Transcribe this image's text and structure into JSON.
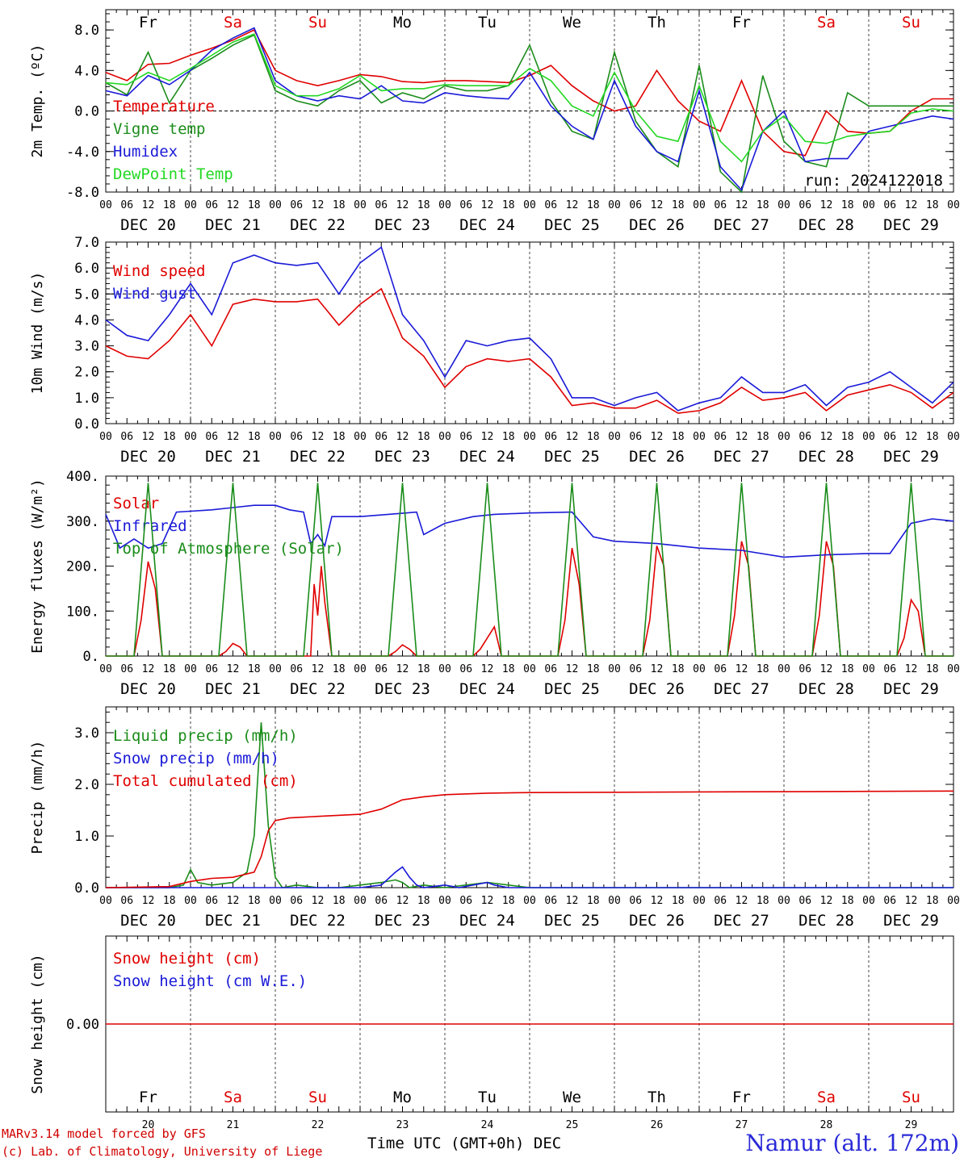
{
  "layout_common": {
    "days": [
      "DEC 20",
      "DEC 21",
      "DEC 22",
      "DEC 23",
      "DEC 24",
      "DEC 25",
      "DEC 26",
      "DEC 27",
      "DEC 28",
      "DEC 29"
    ],
    "weekdays": [
      "Fr",
      "Sa",
      "Su",
      "Mo",
      "Tu",
      "We",
      "Th",
      "Fr",
      "Sa",
      "Su"
    ],
    "weekday_colors": [
      "#000000",
      "#e00000",
      "#e00000",
      "#000000",
      "#000000",
      "#000000",
      "#000000",
      "#000000",
      "#e00000",
      "#e00000"
    ],
    "hour_ticks": [
      "00",
      "06",
      "12",
      "18"
    ],
    "final_tick": "00",
    "bottom_day_numbers": [
      "20",
      "21",
      "22",
      "23",
      "24",
      "25",
      "26",
      "27",
      "28",
      "29"
    ]
  },
  "footer": {
    "credit_line1": "MARv3.14 model forced by GFS",
    "credit_line2": "(c) Lab. of Climatology, University of Liege",
    "time_label": "Time UTC (GMT+0h) DEC",
    "station": "Namur (alt. 172m)"
  },
  "chart_data": [
    {
      "type": "line",
      "ylabel": "2m Temp. (ºC)",
      "ylim": [
        -8,
        10
      ],
      "yticks": [
        -8,
        -4,
        0,
        4,
        8
      ],
      "ytick_labels": [
        "-8.0",
        "-4.0",
        "0.0",
        "4.0",
        "8.0"
      ],
      "reference_line": 0,
      "annotation": "run: 2024122018",
      "x_unit": "hours since DEC 20 00 UTC",
      "series": [
        {
          "name": "Temperature",
          "color": "#e00000",
          "x": [
            0,
            6,
            12,
            18,
            24,
            30,
            36,
            42,
            48,
            54,
            60,
            66,
            72,
            78,
            84,
            90,
            96,
            102,
            108,
            114,
            120,
            126,
            132,
            138,
            144,
            150,
            156,
            162,
            168,
            174,
            180,
            186,
            192,
            198,
            204,
            210,
            216,
            222,
            228,
            234,
            240
          ],
          "values": [
            3.8,
            3.0,
            4.6,
            4.7,
            5.5,
            6.2,
            7.0,
            8.0,
            4.0,
            3.0,
            2.5,
            3.0,
            3.6,
            3.4,
            2.9,
            2.8,
            3.0,
            3.0,
            2.9,
            2.8,
            3.5,
            4.5,
            2.5,
            1.0,
            0.0,
            0.5,
            4.0,
            1.0,
            -1.0,
            -2.0,
            3.0,
            -2.0,
            -4.0,
            -4.4,
            0.0,
            -2.0,
            -2.2,
            -2.0,
            0.0,
            1.2,
            1.2
          ]
        },
        {
          "name": "Vigne temp",
          "color": "#1a8c1a",
          "x": [
            0,
            6,
            12,
            18,
            24,
            30,
            36,
            42,
            48,
            54,
            60,
            66,
            72,
            78,
            84,
            90,
            96,
            102,
            108,
            114,
            120,
            126,
            132,
            138,
            144,
            150,
            156,
            162,
            168,
            174,
            180,
            186,
            192,
            198,
            204,
            210,
            216,
            222,
            228,
            234,
            240
          ],
          "values": [
            2.8,
            1.6,
            5.8,
            0.8,
            4.0,
            5.2,
            6.5,
            7.5,
            2.0,
            1.0,
            0.5,
            2.0,
            3.0,
            0.8,
            1.8,
            1.2,
            2.5,
            2.0,
            2.0,
            2.5,
            6.5,
            1.0,
            -2.0,
            -2.8,
            5.8,
            -1.0,
            -4.0,
            -5.5,
            4.5,
            -6.0,
            -8.0,
            3.5,
            -3.0,
            -5.0,
            -5.5,
            1.8,
            0.5,
            0.5,
            0.5,
            0.5,
            0.5
          ]
        },
        {
          "name": "Humidex",
          "color": "#1a1ad8",
          "x": [
            0,
            6,
            12,
            18,
            24,
            30,
            36,
            42,
            48,
            54,
            60,
            66,
            72,
            78,
            84,
            90,
            96,
            102,
            108,
            114,
            120,
            126,
            132,
            138,
            144,
            150,
            156,
            162,
            168,
            174,
            180,
            186,
            192,
            198,
            204,
            210,
            216,
            222,
            228,
            234,
            240
          ],
          "values": [
            2.0,
            1.5,
            3.5,
            2.6,
            4.0,
            6.0,
            7.2,
            8.2,
            3.0,
            1.5,
            1.0,
            1.5,
            1.2,
            2.5,
            1.0,
            0.8,
            1.8,
            1.5,
            1.3,
            1.2,
            3.8,
            0.5,
            -1.5,
            -2.8,
            3.0,
            -1.5,
            -4.0,
            -5.0,
            2.0,
            -5.5,
            -7.8,
            -2.0,
            0.0,
            -5.0,
            -4.7,
            -4.7,
            -2.0,
            -1.5,
            -1.0,
            -0.5,
            -0.8
          ]
        },
        {
          "name": "DewPoint Temp",
          "color": "#22d822",
          "x": [
            0,
            6,
            12,
            18,
            24,
            30,
            36,
            42,
            48,
            54,
            60,
            66,
            72,
            78,
            84,
            90,
            96,
            102,
            108,
            114,
            120,
            126,
            132,
            138,
            144,
            150,
            156,
            162,
            168,
            174,
            180,
            186,
            192,
            198,
            204,
            210,
            216,
            222,
            228,
            234,
            240
          ],
          "values": [
            2.8,
            2.6,
            3.8,
            3.0,
            4.2,
            5.5,
            6.8,
            7.6,
            2.5,
            1.5,
            1.5,
            2.2,
            3.5,
            2.0,
            2.2,
            2.2,
            2.6,
            2.5,
            2.5,
            2.5,
            4.2,
            3.0,
            0.5,
            -0.5,
            3.8,
            0.0,
            -2.5,
            -3.0,
            2.5,
            -3.0,
            -5.0,
            -2.0,
            -0.5,
            -3.0,
            -3.2,
            -2.5,
            -2.2,
            -2.0,
            -0.2,
            0.2,
            0.0
          ]
        }
      ]
    },
    {
      "type": "line",
      "ylabel": "10m Wind (m/s)",
      "ylim": [
        0,
        7
      ],
      "yticks": [
        0,
        1,
        2,
        3,
        4,
        5,
        6,
        7
      ],
      "ytick_labels": [
        "0.0",
        "1.0",
        "2.0",
        "3.0",
        "4.0",
        "5.0",
        "6.0",
        "7.0"
      ],
      "reference_line": 5,
      "x_unit": "hours since DEC 20 00 UTC",
      "series": [
        {
          "name": "Wind speed",
          "color": "#e00000",
          "x": [
            0,
            6,
            12,
            18,
            24,
            30,
            36,
            42,
            48,
            54,
            60,
            66,
            72,
            78,
            84,
            90,
            96,
            102,
            108,
            114,
            120,
            126,
            132,
            138,
            144,
            150,
            156,
            162,
            168,
            174,
            180,
            186,
            192,
            198,
            204,
            210,
            216,
            222,
            228,
            234,
            240
          ],
          "values": [
            3.0,
            2.6,
            2.5,
            3.2,
            4.2,
            3.0,
            4.6,
            4.8,
            4.7,
            4.7,
            4.8,
            3.8,
            4.6,
            5.2,
            3.3,
            2.6,
            1.4,
            2.2,
            2.5,
            2.4,
            2.5,
            1.8,
            0.7,
            0.8,
            0.6,
            0.6,
            0.9,
            0.4,
            0.5,
            0.8,
            1.4,
            0.9,
            1.0,
            1.2,
            0.5,
            1.1,
            1.3,
            1.5,
            1.2,
            0.6,
            1.2
          ]
        },
        {
          "name": "Wind gust",
          "color": "#1a1ad8",
          "x": [
            0,
            6,
            12,
            18,
            24,
            30,
            36,
            42,
            48,
            54,
            60,
            66,
            72,
            78,
            84,
            90,
            96,
            102,
            108,
            114,
            120,
            126,
            132,
            138,
            144,
            150,
            156,
            162,
            168,
            174,
            180,
            186,
            192,
            198,
            204,
            210,
            216,
            222,
            228,
            234,
            240
          ],
          "values": [
            4.0,
            3.4,
            3.2,
            4.2,
            5.4,
            4.2,
            6.2,
            6.5,
            6.2,
            6.1,
            6.2,
            5.0,
            6.2,
            6.8,
            4.2,
            3.2,
            1.8,
            3.2,
            3.0,
            3.2,
            3.3,
            2.5,
            1.0,
            1.0,
            0.7,
            1.0,
            1.2,
            0.5,
            0.8,
            1.0,
            1.8,
            1.2,
            1.2,
            1.5,
            0.7,
            1.4,
            1.6,
            2.0,
            1.4,
            0.8,
            1.6
          ]
        }
      ]
    },
    {
      "type": "line",
      "ylabel": "Energy fluxes (W/m²)",
      "ylim": [
        0,
        400
      ],
      "yticks": [
        0,
        100,
        200,
        300,
        400
      ],
      "ytick_labels": [
        "0.",
        "100.",
        "200.",
        "300.",
        "400."
      ],
      "x_unit": "hours since DEC 20 00 UTC",
      "series": [
        {
          "name": "Solar",
          "color": "#e00000",
          "x": [
            0,
            8,
            10,
            12,
            14,
            16,
            24,
            32,
            34,
            36,
            38,
            40,
            48,
            56,
            58,
            59,
            60,
            61,
            62,
            64,
            72,
            80,
            82,
            84,
            86,
            88,
            96,
            104,
            106,
            108,
            110,
            112,
            120,
            128,
            130,
            132,
            134,
            136,
            144,
            152,
            154,
            156,
            158,
            160,
            168,
            176,
            178,
            180,
            182,
            184,
            192,
            200,
            202,
            204,
            206,
            208,
            216,
            224,
            226,
            228,
            230,
            232,
            240
          ],
          "values": [
            0,
            0,
            80,
            210,
            150,
            0,
            0,
            0,
            10,
            28,
            20,
            0,
            0,
            0,
            0,
            160,
            90,
            200,
            120,
            0,
            0,
            0,
            10,
            25,
            15,
            0,
            0,
            0,
            15,
            40,
            65,
            0,
            0,
            0,
            80,
            240,
            160,
            0,
            0,
            0,
            80,
            245,
            200,
            0,
            0,
            0,
            90,
            255,
            200,
            0,
            0,
            0,
            90,
            255,
            200,
            0,
            0,
            0,
            40,
            125,
            100,
            0,
            0
          ]
        },
        {
          "name": "Infrared",
          "color": "#1a1ad8",
          "x": [
            0,
            4,
            8,
            12,
            16,
            20,
            24,
            30,
            36,
            42,
            48,
            52,
            56,
            58,
            60,
            62,
            64,
            72,
            80,
            88,
            90,
            96,
            104,
            110,
            120,
            132,
            138,
            144,
            156,
            168,
            180,
            192,
            204,
            216,
            222,
            228,
            234,
            240
          ],
          "values": [
            315,
            240,
            260,
            240,
            250,
            320,
            322,
            325,
            330,
            335,
            335,
            325,
            320,
            250,
            270,
            245,
            310,
            310,
            315,
            320,
            270,
            295,
            310,
            315,
            318,
            320,
            265,
            255,
            250,
            240,
            235,
            220,
            225,
            228,
            228,
            295,
            305,
            300
          ]
        },
        {
          "name": "Top of Atmosphere (Solar)",
          "color": "#1a8c1a",
          "x": [
            0,
            8,
            12,
            16,
            24,
            32,
            36,
            40,
            48,
            56,
            60,
            64,
            72,
            80,
            84,
            88,
            96,
            104,
            108,
            112,
            120,
            128,
            132,
            136,
            144,
            152,
            156,
            160,
            168,
            176,
            180,
            184,
            192,
            200,
            204,
            208,
            216,
            224,
            228,
            232,
            240
          ],
          "values": [
            0,
            0,
            385,
            0,
            0,
            0,
            385,
            0,
            0,
            0,
            385,
            0,
            0,
            0,
            385,
            0,
            0,
            0,
            385,
            0,
            0,
            0,
            385,
            0,
            0,
            0,
            385,
            0,
            0,
            0,
            385,
            0,
            0,
            0,
            385,
            0,
            0,
            0,
            385,
            0,
            0
          ]
        }
      ]
    },
    {
      "type": "line",
      "ylabel": "Precip (mm/h)",
      "ylim": [
        0,
        3.5
      ],
      "yticks": [
        0,
        1,
        2,
        3
      ],
      "ytick_labels": [
        "0.0",
        "1.0",
        "2.0",
        "3.0"
      ],
      "x_unit": "hours since DEC 20 00 UTC",
      "series": [
        {
          "name": "Liquid precip (mm/h)",
          "color": "#1a8c1a",
          "x": [
            0,
            18,
            22,
            24,
            26,
            30,
            36,
            40,
            42,
            44,
            46,
            48,
            50,
            54,
            60,
            66,
            72,
            78,
            82,
            84,
            86,
            90,
            96,
            108,
            120,
            240
          ],
          "values": [
            0,
            0,
            0.05,
            0.35,
            0.1,
            0.05,
            0.1,
            0.3,
            1.0,
            3.2,
            1.2,
            0.2,
            0,
            0.05,
            0,
            0,
            0.05,
            0.1,
            0.15,
            0.1,
            0,
            0.05,
            0,
            0.1,
            0,
            0
          ]
        },
        {
          "name": "Snow precip (mm/h)",
          "color": "#1a1ad8",
          "x": [
            0,
            72,
            78,
            82,
            84,
            86,
            88,
            90,
            96,
            100,
            108,
            110,
            114,
            120,
            240
          ],
          "values": [
            0,
            0,
            0.05,
            0.3,
            0.4,
            0.2,
            0.05,
            0,
            0.05,
            0,
            0.1,
            0.05,
            0,
            0,
            0
          ]
        },
        {
          "name": "Total cumulated (cm)",
          "color": "#e00000",
          "x": [
            0,
            18,
            24,
            30,
            36,
            42,
            44,
            46,
            48,
            52,
            60,
            72,
            78,
            84,
            90,
            96,
            108,
            120,
            240
          ],
          "values": [
            0,
            0.02,
            0.12,
            0.18,
            0.2,
            0.3,
            0.6,
            1.1,
            1.3,
            1.35,
            1.38,
            1.42,
            1.52,
            1.7,
            1.76,
            1.8,
            1.83,
            1.84,
            1.87
          ]
        }
      ]
    },
    {
      "type": "line",
      "ylabel": "Snow height (cm)",
      "ylim": [
        -1,
        1
      ],
      "yticks": [
        0
      ],
      "ytick_labels": [
        "0.00"
      ],
      "x_unit": "hours since DEC 20 00 UTC",
      "series": [
        {
          "name": "Snow height (cm)",
          "color": "#e00000",
          "x": [
            0,
            240
          ],
          "values": [
            0,
            0
          ]
        },
        {
          "name": "Snow height (cm W.E.)",
          "color": "#1a1ad8",
          "x": [],
          "values": []
        }
      ]
    }
  ]
}
